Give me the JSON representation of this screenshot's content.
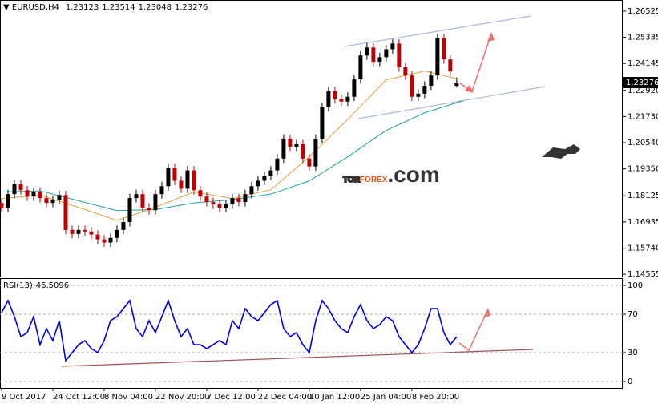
{
  "chart_data": [
    {
      "type": "candlestick",
      "symbol": "EURUSD,H4",
      "up_color": "#000000",
      "down_color": "#c00000",
      "xlim": [
        -0.25,
        96.9
      ],
      "ylim": [
        1.1445,
        1.2696
      ],
      "yticks": [
        1.26525,
        1.25335,
        1.24145,
        {
          "value": 1.2292,
          "label": "1.22920"
        },
        {
          "value": 1.2173,
          "label": "1.21730"
        },
        {
          "value": 1.2054,
          "label": "1.20540"
        },
        {
          "value": 1.1935,
          "label": "1.19350"
        },
        1.18125,
        1.16935,
        {
          "value": 1.1574,
          "label": "1.15740"
        },
        1.14555
      ],
      "open": [
        1.178,
        1.1758,
        1.182,
        1.1866,
        1.1838,
        1.1809,
        1.183,
        1.1802,
        1.178,
        1.1794,
        1.1816,
        1.1657,
        1.1639,
        1.1657,
        1.165,
        1.1636,
        1.1614,
        1.16,
        1.1621,
        1.1657,
        1.1693,
        1.1802,
        1.182,
        1.1758,
        1.1747,
        1.182,
        1.1856,
        1.1939,
        1.1881,
        1.1845,
        1.1928,
        1.1838,
        1.1809,
        1.1784,
        1.1773,
        1.1758,
        1.1773,
        1.1802,
        1.1784,
        1.182,
        1.1856,
        1.1881,
        1.1903,
        1.1928,
        1.1982,
        1.2072,
        1.2036,
        1.2047,
        1.1982,
        1.1946,
        1.2072,
        1.2216,
        1.2288,
        1.2252,
        1.2241,
        1.2263,
        1.2342,
        1.2451,
        1.2487,
        1.2422,
        1.2443,
        1.2479,
        1.2505,
        1.2397,
        1.236,
        1.2263,
        1.2277,
        1.2313,
        1.236,
        1.253,
        1.2433,
        1.23123
      ],
      "high": [
        1.18,
        1.184,
        1.1886,
        1.1886,
        1.1858,
        1.185,
        1.185,
        1.1822,
        1.1814,
        1.1836,
        1.1836,
        1.1677,
        1.1677,
        1.1677,
        1.167,
        1.1656,
        1.1634,
        1.1641,
        1.1677,
        1.1713,
        1.1822,
        1.184,
        1.184,
        1.1778,
        1.184,
        1.1876,
        1.1959,
        1.1959,
        1.1901,
        1.1948,
        1.1948,
        1.1858,
        1.1829,
        1.1804,
        1.1793,
        1.1793,
        1.1822,
        1.1822,
        1.184,
        1.1876,
        1.1901,
        1.1923,
        1.1948,
        1.2002,
        1.2092,
        1.2092,
        1.2067,
        1.2067,
        1.2002,
        1.2092,
        1.2236,
        1.2308,
        1.2308,
        1.2272,
        1.2283,
        1.2362,
        1.2471,
        1.2507,
        1.2507,
        1.2463,
        1.2499,
        1.2525,
        1.2525,
        1.2417,
        1.238,
        1.2297,
        1.2333,
        1.238,
        1.255,
        1.255,
        1.2453,
        1.23514
      ],
      "low": [
        1.1738,
        1.1738,
        1.18,
        1.1818,
        1.1789,
        1.1789,
        1.1782,
        1.176,
        1.176,
        1.1774,
        1.1637,
        1.1619,
        1.1619,
        1.163,
        1.1616,
        1.1594,
        1.158,
        1.158,
        1.1601,
        1.1637,
        1.1673,
        1.1782,
        1.1738,
        1.1727,
        1.1727,
        1.18,
        1.1836,
        1.1861,
        1.1825,
        1.1825,
        1.1818,
        1.1789,
        1.1764,
        1.1753,
        1.1738,
        1.1738,
        1.1753,
        1.1764,
        1.1764,
        1.18,
        1.1836,
        1.1861,
        1.1883,
        1.1908,
        1.1962,
        1.2016,
        1.2016,
        1.1962,
        1.1926,
        1.1926,
        1.2052,
        1.2196,
        1.2232,
        1.2221,
        1.2221,
        1.2243,
        1.2322,
        1.2431,
        1.2402,
        1.2402,
        1.2423,
        1.2459,
        1.2377,
        1.234,
        1.2243,
        1.2243,
        1.2257,
        1.2293,
        1.234,
        1.2413,
        1.2358,
        1.23048
      ],
      "close": [
        1.1758,
        1.182,
        1.1866,
        1.1838,
        1.1809,
        1.183,
        1.1802,
        1.178,
        1.1794,
        1.1816,
        1.1657,
        1.1639,
        1.1657,
        1.165,
        1.1636,
        1.1614,
        1.16,
        1.1621,
        1.1657,
        1.1693,
        1.1802,
        1.182,
        1.1758,
        1.1747,
        1.182,
        1.1856,
        1.1939,
        1.1881,
        1.1845,
        1.1928,
        1.1838,
        1.1809,
        1.1784,
        1.1773,
        1.1758,
        1.1773,
        1.1802,
        1.1784,
        1.182,
        1.1856,
        1.1881,
        1.1903,
        1.1928,
        1.1982,
        1.2072,
        1.2036,
        1.2047,
        1.1982,
        1.1946,
        1.2072,
        1.2216,
        1.2288,
        1.2252,
        1.2241,
        1.2263,
        1.2342,
        1.2451,
        1.2487,
        1.2422,
        1.2443,
        1.2479,
        1.2505,
        1.2397,
        1.236,
        1.2263,
        1.2277,
        1.2313,
        1.236,
        1.253,
        1.2433,
        1.2378,
        1.23276
      ],
      "series": [
        {
          "color": "#e0a040",
          "x": [
            0,
            6,
            12,
            18,
            24,
            30,
            36,
            42,
            48,
            54,
            60,
            66,
            71
          ],
          "values": [
            1.18,
            1.1815,
            1.176,
            1.17,
            1.176,
            1.183,
            1.18,
            1.184,
            1.199,
            1.216,
            1.234,
            1.238,
            1.2345
          ]
        },
        {
          "color": "#20a0a0",
          "x": [
            0,
            6,
            12,
            18,
            24,
            30,
            36,
            42,
            48,
            54,
            60,
            66,
            72
          ],
          "values": [
            1.183,
            1.1835,
            1.179,
            1.1745,
            1.175,
            1.178,
            1.1795,
            1.182,
            1.188,
            1.199,
            1.211,
            1.219,
            1.2245
          ]
        }
      ],
      "watermark": {
        "prefix": "TOR",
        "brand": "FOREX",
        "suffix": ".com"
      }
    },
    {
      "type": "line",
      "name": "RSI(13)",
      "color": "#0000dd",
      "xlim": [
        -0.25,
        96.9
      ],
      "ylim": [
        -6.7,
        106.7
      ],
      "yticks": [
        100,
        70,
        30,
        0
      ],
      "grid": "dashed",
      "xticks": [
        {
          "value": 0,
          "label": "9 Oct 2017"
        },
        {
          "value": 8,
          "label": "24 Oct 12:00"
        },
        {
          "value": 16,
          "label": "8 Nov 04:00"
        },
        {
          "value": 24,
          "label": "22 Nov 20:00"
        },
        {
          "value": 32,
          "label": "7 Dec 12:00"
        },
        {
          "value": 40,
          "label": "22 Dec 04:00"
        },
        {
          "value": 48,
          "label": "10 Jan 12:00"
        },
        {
          "value": 56,
          "label": "25 Jan 04:00"
        },
        {
          "value": 64,
          "label": "8 Feb 20:00"
        }
      ],
      "values": [
        71.7,
        84.2,
        67.5,
        46.7,
        50.8,
        67.5,
        38.3,
        55,
        42.5,
        63.3,
        21.7,
        30,
        38.3,
        42.5,
        34.2,
        30,
        42.5,
        63.3,
        67.5,
        75.8,
        84.2,
        55,
        46.7,
        63.3,
        50.8,
        67.5,
        84.2,
        63.3,
        46.7,
        55,
        38.3,
        38.3,
        34.2,
        38.3,
        42.5,
        38.3,
        63.3,
        55,
        75.8,
        67.5,
        63.3,
        71.7,
        80,
        84.2,
        55,
        46.7,
        50.8,
        38.3,
        30,
        63.3,
        84.2,
        75.8,
        63.3,
        55,
        50.8,
        67.5,
        80,
        63.3,
        55,
        59.2,
        67.5,
        63.3,
        46.7,
        38.3,
        30,
        38.3,
        55,
        75.8,
        75.8,
        50.8,
        38.3,
        46.5096
      ]
    }
  ]
}
